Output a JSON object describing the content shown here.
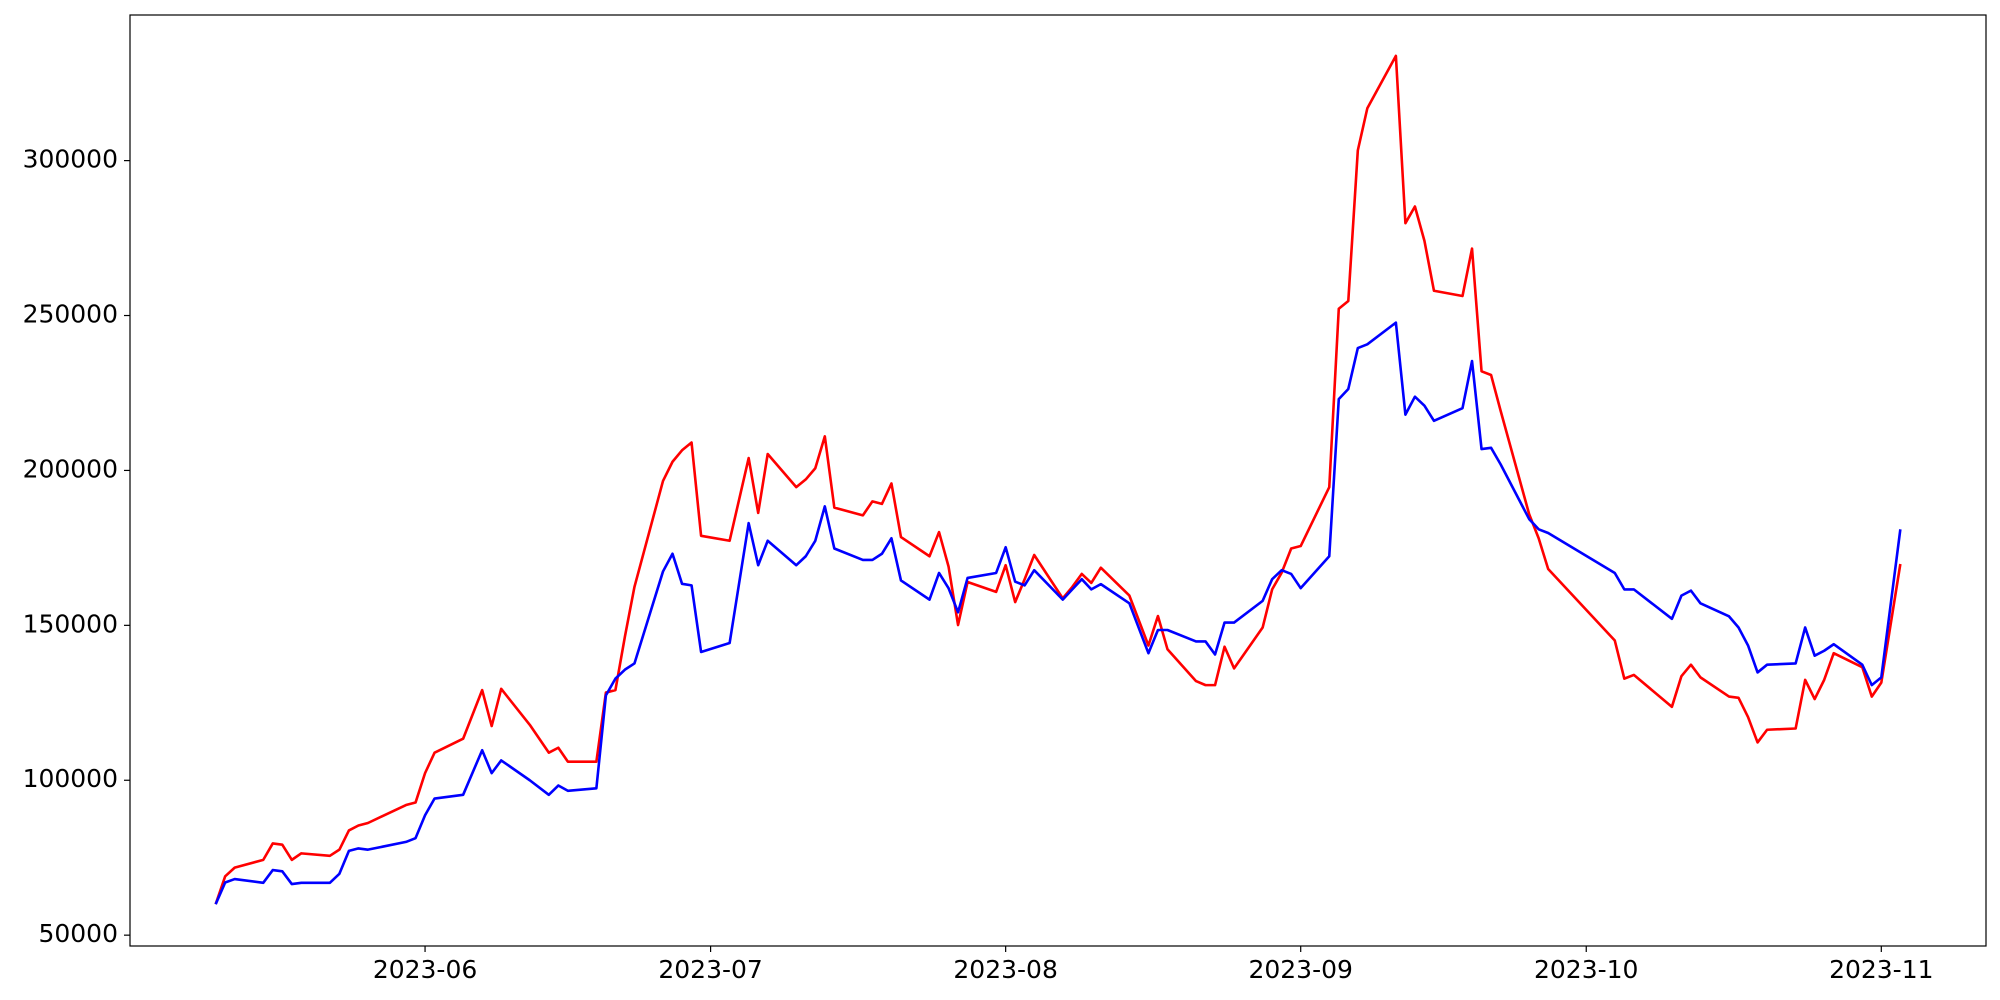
{
  "chart_data": {
    "type": "line",
    "x": [
      19487,
      19488,
      19489,
      19492,
      19493,
      19494,
      19495,
      19496,
      19499,
      19500,
      19501,
      19502,
      19503,
      19507,
      19508,
      19509,
      19510,
      19513,
      19515,
      19516,
      19517,
      19520,
      19522,
      19523,
      19524,
      19527,
      19528,
      19529,
      19530,
      19531,
      19534,
      19535,
      19536,
      19537,
      19538,
      19541,
      19543,
      19544,
      19545,
      19548,
      19549,
      19550,
      19551,
      19552,
      19555,
      19556,
      19557,
      19558,
      19559,
      19562,
      19563,
      19564,
      19565,
      19566,
      19569,
      19570,
      19571,
      19572,
      19573,
      19576,
      19577,
      19578,
      19579,
      19580,
      19583,
      19585,
      19586,
      19587,
      19590,
      19591,
      19592,
      19593,
      19594,
      19597,
      19598,
      19599,
      19600,
      19601,
      19604,
      19605,
      19606,
      19607,
      19608,
      19611,
      19612,
      19613,
      19614,
      19615,
      19618,
      19619,
      19620,
      19621,
      19622,
      19625,
      19626,
      19627,
      19634,
      19635,
      19636,
      19640,
      19641,
      19642,
      19643,
      19646,
      19647,
      19648,
      19649,
      19650,
      19653,
      19654,
      19655,
      19656,
      19657,
      19660,
      19661,
      19662,
      19664
    ],
    "series": [
      {
        "color": "#ff0000",
        "values": [
          60000,
          69000,
          71800,
          74300,
          79600,
          79200,
          74300,
          76400,
          75600,
          77600,
          83800,
          85400,
          86200,
          92000,
          92800,
          102300,
          108900,
          113400,
          129100,
          117500,
          129500,
          117900,
          108900,
          110500,
          106000,
          106000,
          128300,
          129100,
          146400,
          162400,
          196600,
          202800,
          206500,
          209000,
          178900,
          177300,
          204000,
          186300,
          205300,
          194600,
          197100,
          200700,
          211000,
          188000,
          185500,
          190000,
          189200,
          195800,
          178500,
          172300,
          180100,
          169000,
          150100,
          164000,
          160800,
          169400,
          157500,
          164900,
          172700,
          158700,
          162400,
          166600,
          163700,
          168600,
          159600,
          143500,
          153000,
          142300,
          132000,
          130700,
          130700,
          143100,
          136100,
          149300,
          161600,
          167000,
          174800,
          175600,
          194600,
          252200,
          254700,
          303300,
          316900,
          333800,
          279800,
          285200,
          274100,
          258000,
          256300,
          271600,
          232000,
          230800,
          219300,
          185900,
          178100,
          168200,
          145100,
          132800,
          134000,
          123700,
          133600,
          137300,
          133200,
          127000,
          126600,
          120400,
          112200,
          116300,
          116700,
          132400,
          126200,
          132400,
          141000,
          136500,
          127000,
          131500,
          169800
        ]
      },
      {
        "color": "#0000ff",
        "values": [
          60000,
          67000,
          68100,
          66900,
          71000,
          70600,
          66500,
          66900,
          66900,
          69800,
          77200,
          78000,
          77600,
          80100,
          81300,
          88700,
          94100,
          95300,
          109700,
          102300,
          106400,
          100000,
          95300,
          98300,
          96600,
          97400,
          127400,
          132800,
          135700,
          137700,
          167400,
          173100,
          163400,
          162900,
          141400,
          144300,
          183000,
          169400,
          177300,
          169400,
          172300,
          177300,
          188400,
          174800,
          171100,
          171100,
          173100,
          178100,
          164500,
          158300,
          166900,
          162000,
          154200,
          165300,
          166900,
          175200,
          164100,
          162900,
          167800,
          158300,
          161600,
          164900,
          161600,
          163300,
          157100,
          141000,
          148500,
          148500,
          144800,
          144800,
          140600,
          150900,
          150900,
          157900,
          164900,
          167800,
          166600,
          162000,
          172300,
          223000,
          226300,
          239500,
          240700,
          247700,
          218000,
          223800,
          220900,
          216000,
          220100,
          235300,
          206900,
          207300,
          202000,
          184300,
          181000,
          179800,
          166900,
          161600,
          161600,
          152100,
          159600,
          161200,
          157100,
          152900,
          149300,
          143500,
          134800,
          137300,
          137700,
          149300,
          140200,
          141800,
          143900,
          137300,
          130700,
          133200,
          181000
        ]
      }
    ],
    "xlim": [
      19478,
      19673
    ],
    "xticks": [
      {
        "value": 19509,
        "label": "2023-06"
      },
      {
        "value": 19539,
        "label": "2023-07"
      },
      {
        "value": 19570,
        "label": "2023-08"
      },
      {
        "value": 19601,
        "label": "2023-09"
      },
      {
        "value": 19631,
        "label": "2023-10"
      },
      {
        "value": 19662,
        "label": "2023-11"
      }
    ],
    "ylim": [
      46500,
      347000
    ],
    "yticks": [
      50000,
      100000,
      150000,
      200000,
      250000,
      300000
    ],
    "grid": false
  }
}
